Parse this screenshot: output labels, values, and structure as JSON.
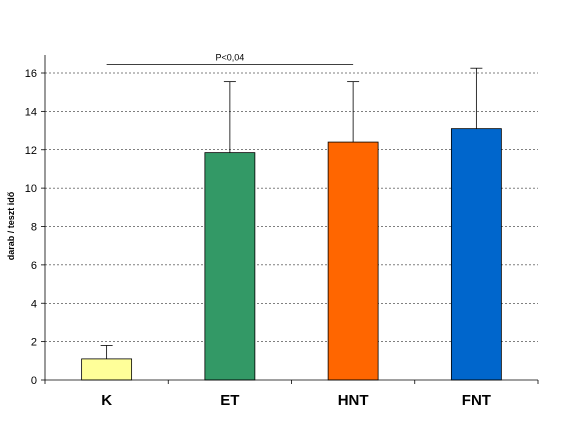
{
  "chart_data": {
    "type": "bar",
    "categories": [
      "K",
      "ET",
      "HNT",
      "FNT"
    ],
    "values": [
      1.1,
      11.85,
      12.4,
      13.1
    ],
    "errors": [
      0.7,
      3.7,
      3.15,
      3.15
    ],
    "colors": [
      "#ffff99",
      "#339966",
      "#ff6600",
      "#0066cc"
    ],
    "ylabel": "darab / teszt idő",
    "ylim": [
      0,
      16
    ],
    "yticks": [
      0,
      2,
      4,
      6,
      8,
      10,
      12,
      14,
      16
    ],
    "grid": true,
    "legend": "none",
    "annotation": {
      "label": "P<0,04",
      "from_category": "K",
      "to_category": "HNT",
      "value": 16.45
    }
  }
}
